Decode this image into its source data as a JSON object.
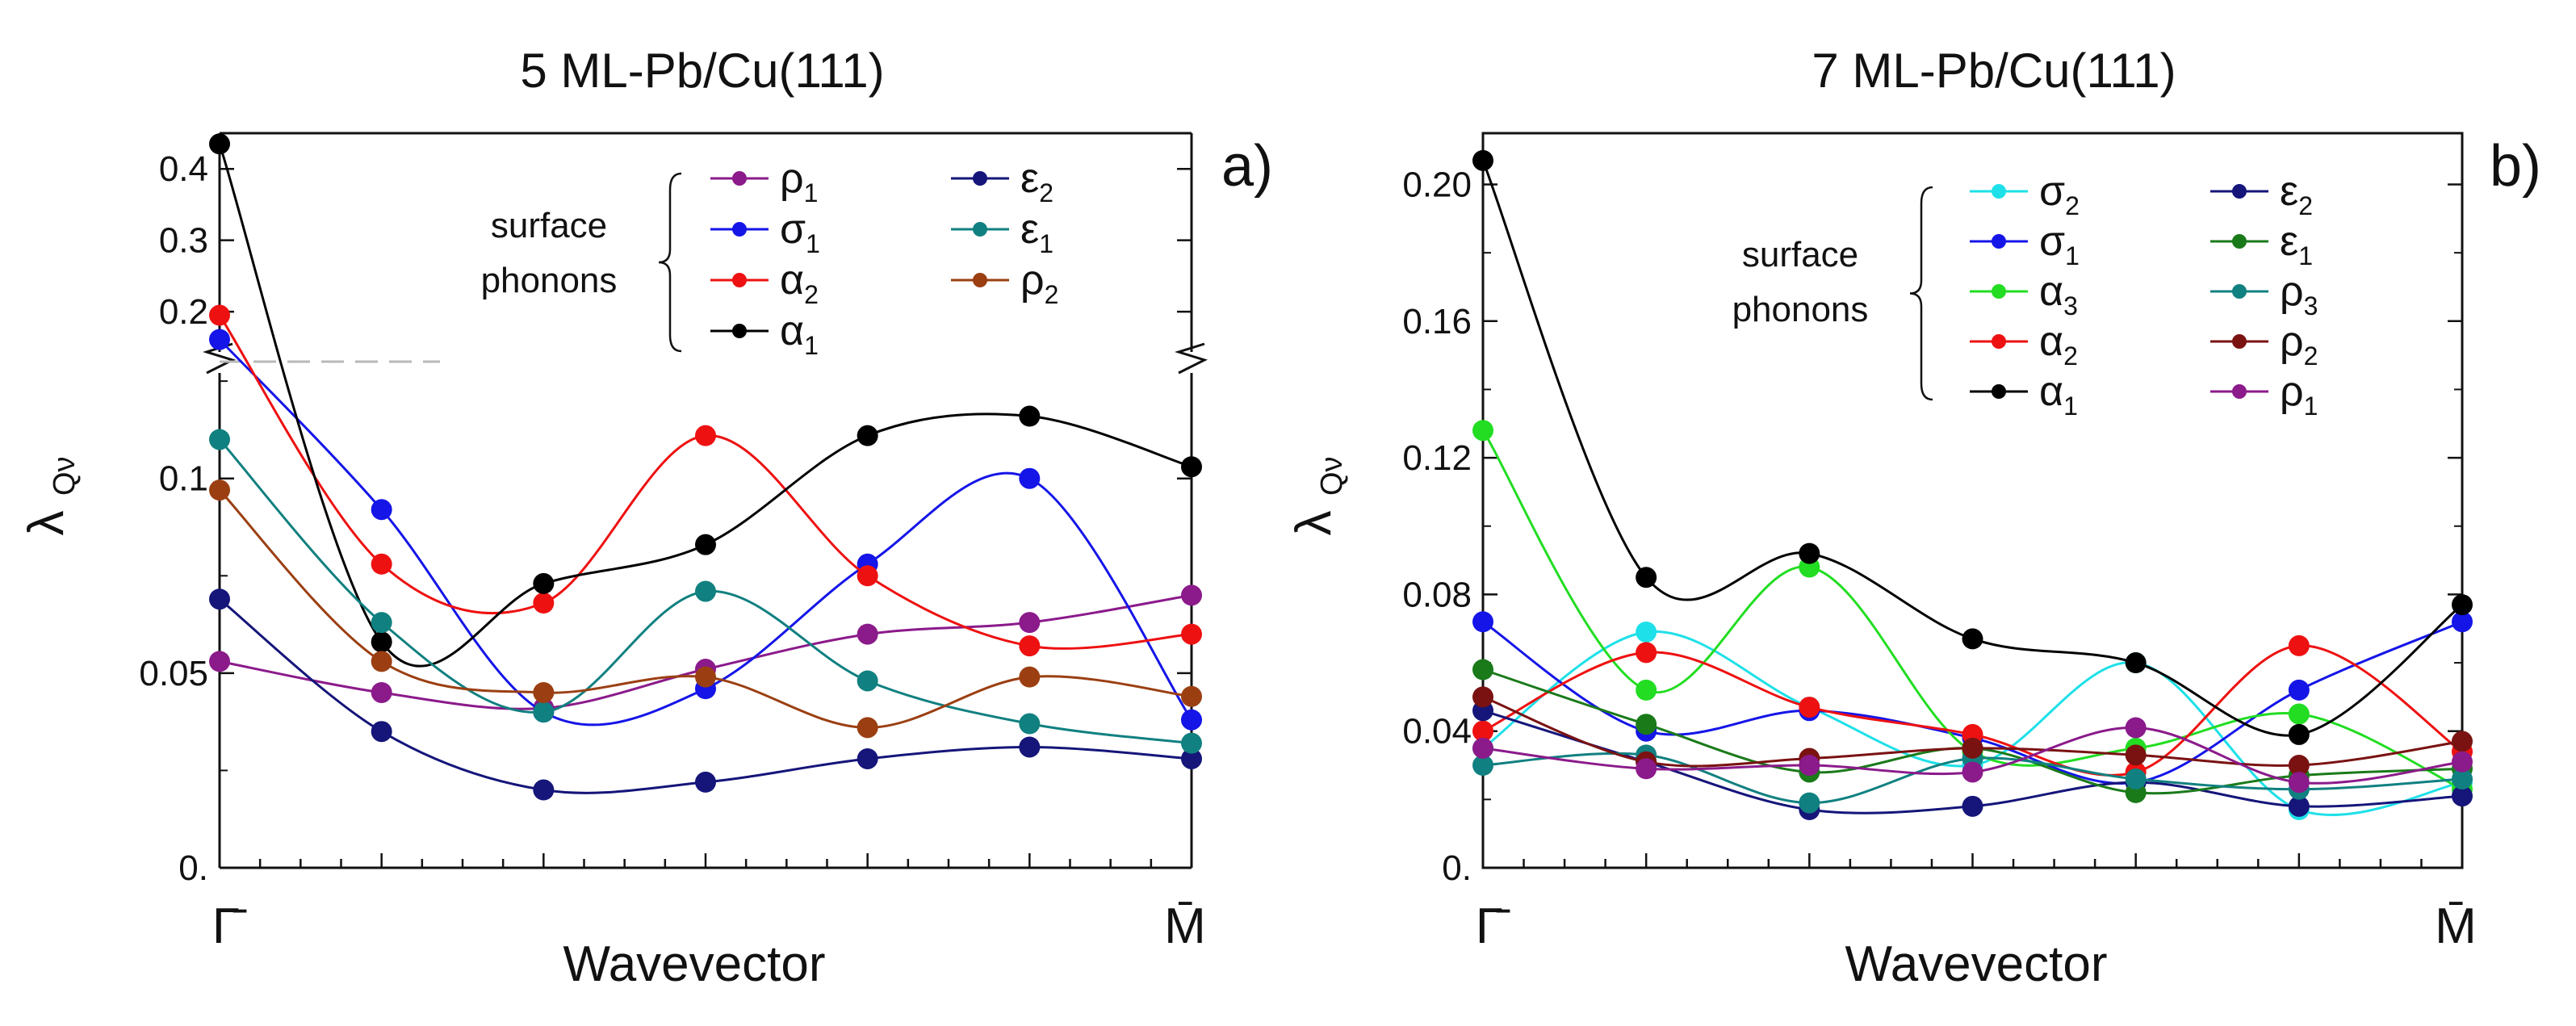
{
  "chart_data": [
    {
      "type": "line",
      "panel": "a)",
      "title": "5 ML-Pb/Cu(111)",
      "xlabel": "Wavevector",
      "ylabel": "λ",
      "ylabel_sub": "Qν",
      "x_tick_labels": [
        "Γ̄",
        "M̄"
      ],
      "x_categories": [
        0,
        1,
        2,
        3,
        4,
        5,
        6
      ],
      "y_tick_labels_lower": [
        "0.",
        "0.05",
        "0.1"
      ],
      "y_tick_labels_upper": [
        "0.2",
        "0.3",
        "0.4"
      ],
      "ylim_lower": [
        0,
        0.13
      ],
      "ylim_upper": [
        0.13,
        0.45
      ],
      "axis_break": true,
      "legend_group_label": [
        "surface",
        "phonons"
      ],
      "series": [
        {
          "name": "ρ₁",
          "sym": "ρ",
          "sub": "1",
          "color": "#8b1a8b",
          "values": [
            0.053,
            0.045,
            0.041,
            0.051,
            0.06,
            0.063,
            0.07
          ]
        },
        {
          "name": "σ₁",
          "sym": "σ",
          "sub": "1",
          "color": "#1515e8",
          "values": [
            0.161,
            0.092,
            0.04,
            0.046,
            0.078,
            0.1,
            0.038
          ]
        },
        {
          "name": "α₂",
          "sym": "α",
          "sub": "2",
          "color": "#ee1111",
          "values": [
            0.195,
            0.078,
            0.068,
            0.111,
            0.075,
            0.057,
            0.06
          ]
        },
        {
          "name": "α₁",
          "sym": "α",
          "sub": "1",
          "color": "#000000",
          "values": [
            0.435,
            0.058,
            0.073,
            0.083,
            0.111,
            0.116,
            0.103
          ]
        },
        {
          "name": "ε₂",
          "sym": "ε",
          "sub": "2",
          "color": "#15157a",
          "values": [
            0.069,
            0.035,
            0.02,
            0.022,
            0.028,
            0.031,
            0.028
          ]
        },
        {
          "name": "ε₁",
          "sym": "ε",
          "sub": "1",
          "color": "#118080",
          "values": [
            0.11,
            0.063,
            0.04,
            0.071,
            0.048,
            0.037,
            0.032
          ]
        },
        {
          "name": "ρ₂",
          "sym": "ρ",
          "sub": "2",
          "color": "#9b3f12",
          "values": [
            0.097,
            0.053,
            0.045,
            0.049,
            0.036,
            0.049,
            0.044
          ]
        }
      ]
    },
    {
      "type": "line",
      "panel": "b)",
      "title": "7 ML-Pb/Cu(111)",
      "xlabel": "Wavevector",
      "ylabel": "λ",
      "ylabel_sub": "Qν",
      "x_tick_labels": [
        "Γ̄",
        "M̄"
      ],
      "x_categories": [
        0,
        1,
        2,
        3,
        4,
        5,
        6
      ],
      "y_tick_labels": [
        "0.",
        "0.04",
        "0.08",
        "0.12",
        "0.16",
        "0.20"
      ],
      "ylim": [
        0,
        0.215
      ],
      "legend_group_label": [
        "surface",
        "phonons"
      ],
      "series": [
        {
          "name": "σ₂",
          "sym": "σ",
          "sub": "2",
          "color": "#1ee0e8",
          "values": [
            0.035,
            0.069,
            0.047,
            0.03,
            0.06,
            0.017,
            0.025
          ]
        },
        {
          "name": "σ₁",
          "sym": "σ",
          "sub": "1",
          "color": "#1515e8",
          "values": [
            0.072,
            0.04,
            0.046,
            0.038,
            0.025,
            0.052,
            0.072
          ]
        },
        {
          "name": "α₃",
          "sym": "α",
          "sub": "3",
          "color": "#22dd22",
          "values": [
            0.128,
            0.052,
            0.088,
            0.034,
            0.035,
            0.045,
            0.023
          ]
        },
        {
          "name": "α₂",
          "sym": "α",
          "sub": "2",
          "color": "#ee1111",
          "values": [
            0.04,
            0.063,
            0.047,
            0.039,
            0.028,
            0.065,
            0.034
          ]
        },
        {
          "name": "α₁",
          "sym": "α",
          "sub": "1",
          "color": "#000000",
          "values": [
            0.207,
            0.085,
            0.092,
            0.067,
            0.06,
            0.039,
            0.077
          ]
        },
        {
          "name": "ε₂",
          "sym": "ε",
          "sub": "2",
          "color": "#15157a",
          "values": [
            0.046,
            0.031,
            0.017,
            0.018,
            0.025,
            0.018,
            0.021
          ]
        },
        {
          "name": "ε₁",
          "sym": "ε",
          "sub": "1",
          "color": "#1a7a1a",
          "values": [
            0.058,
            0.042,
            0.028,
            0.035,
            0.022,
            0.027,
            0.029
          ]
        },
        {
          "name": "ρ₃",
          "sym": "ρ",
          "sub": "3",
          "color": "#118080",
          "values": [
            0.03,
            0.033,
            0.019,
            0.032,
            0.026,
            0.023,
            0.026
          ]
        },
        {
          "name": "ρ₂",
          "sym": "ρ",
          "sub": "2",
          "color": "#7a1212",
          "values": [
            0.05,
            0.031,
            0.032,
            0.035,
            0.033,
            0.03,
            0.037
          ]
        },
        {
          "name": "ρ₁",
          "sym": "ρ",
          "sub": "1",
          "color": "#8b1a8b",
          "values": [
            0.035,
            0.029,
            0.03,
            0.028,
            0.041,
            0.025,
            0.031
          ]
        }
      ]
    }
  ]
}
